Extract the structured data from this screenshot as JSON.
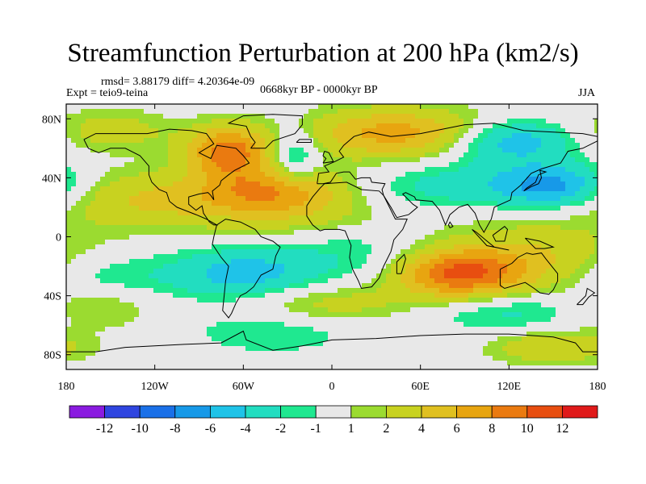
{
  "title": "Streamfunction Perturbation at 200 hPa (km2/s)",
  "stats_line": "rmsd= 3.88179 diff= 4.20364e-09",
  "experiment": "Expt = teio9-teina",
  "period": "0668kyr BP - 0000kyr BP",
  "season": "JJA",
  "map": {
    "lon_range": [
      -180,
      180
    ],
    "lat_range": [
      -90,
      90
    ],
    "lon_ticks": [
      {
        "value": -180,
        "label": "180"
      },
      {
        "value": -120,
        "label": "120W"
      },
      {
        "value": -60,
        "label": "60W"
      },
      {
        "value": 0,
        "label": "0"
      },
      {
        "value": 60,
        "label": "60E"
      },
      {
        "value": 120,
        "label": "120E"
      },
      {
        "value": 180,
        "label": "180"
      }
    ],
    "lat_ticks": [
      {
        "value": 80,
        "label": "80N"
      },
      {
        "value": 40,
        "label": "40N"
      },
      {
        "value": 0,
        "label": "0"
      },
      {
        "value": -40,
        "label": "40S"
      },
      {
        "value": -80,
        "label": "80S"
      }
    ],
    "field_centers": [
      {
        "lon": -70,
        "lat": 58,
        "amp": 9,
        "sx": 20,
        "sy": 12
      },
      {
        "lon": -40,
        "lat": 30,
        "amp": 8,
        "sx": 35,
        "sy": 12
      },
      {
        "lon": -125,
        "lat": 25,
        "amp": 4,
        "sx": 40,
        "sy": 14
      },
      {
        "lon": 45,
        "lat": 70,
        "amp": 7,
        "sx": 45,
        "sy": 12
      },
      {
        "lon": -150,
        "lat": 72,
        "amp": 3,
        "sx": 30,
        "sy": 10
      },
      {
        "lon": 120,
        "lat": 65,
        "amp": -6,
        "sx": 30,
        "sy": 10
      },
      {
        "lon": 150,
        "lat": 35,
        "amp": -6,
        "sx": 25,
        "sy": 10
      },
      {
        "lon": 90,
        "lat": 35,
        "amp": -3,
        "sx": 45,
        "sy": 12
      },
      {
        "lon": -25,
        "lat": 55,
        "amp": -4,
        "sx": 12,
        "sy": 14
      },
      {
        "lon": -60,
        "lat": -25,
        "amp": -5,
        "sx": 35,
        "sy": 12
      },
      {
        "lon": -160,
        "lat": -30,
        "amp": -3,
        "sx": 35,
        "sy": 12
      },
      {
        "lon": 20,
        "lat": -8,
        "amp": -2,
        "sx": 40,
        "sy": 18
      },
      {
        "lon": 85,
        "lat": -25,
        "amp": 10,
        "sx": 30,
        "sy": 12
      },
      {
        "lon": 140,
        "lat": -15,
        "amp": 4,
        "sx": 40,
        "sy": 18
      },
      {
        "lon": 0,
        "lat": -45,
        "amp": 3,
        "sx": 40,
        "sy": 10
      },
      {
        "lon": -160,
        "lat": -45,
        "amp": 3,
        "sx": 30,
        "sy": 12
      },
      {
        "lon": -40,
        "lat": -65,
        "amp": -2,
        "sx": 40,
        "sy": 10
      },
      {
        "lon": 120,
        "lat": -50,
        "amp": -3,
        "sx": 40,
        "sy": 10
      },
      {
        "lon": 150,
        "lat": -75,
        "amp": 4,
        "sx": 30,
        "sy": 8
      },
      {
        "lon": 0,
        "lat": 10,
        "amp": 2,
        "sx": 60,
        "sy": 10
      }
    ]
  },
  "colorbar": {
    "colors": [
      "#8a1be0",
      "#2f45e0",
      "#1a70e8",
      "#1799e8",
      "#1fc3e8",
      "#22ddc0",
      "#1fe890",
      "#e8e8e8",
      "#9bdb30",
      "#c8d220",
      "#e0c020",
      "#e8a510",
      "#ea7a10",
      "#e84e10",
      "#e01a1a"
    ],
    "labels": [
      "-12",
      "-10",
      "-8",
      "-6",
      "-4",
      "-2",
      "-1",
      "1",
      "2",
      "4",
      "6",
      "8",
      "10",
      "12"
    ],
    "levels": [
      -12,
      -10,
      -8,
      -6,
      -4,
      -2,
      -1,
      1,
      2,
      4,
      6,
      8,
      10,
      12
    ]
  }
}
